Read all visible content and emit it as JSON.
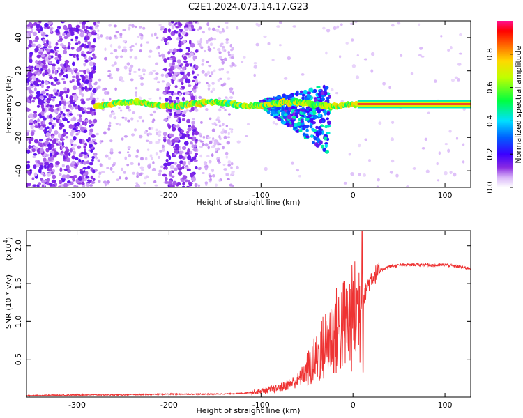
{
  "title": "C2E1.2024.073.14.17.G23",
  "chart_data": [
    {
      "type": "heatmap",
      "name": "spectrogram",
      "xlabel": "Height of straight line (km)",
      "ylabel": "Frequency (Hz)",
      "xlim": [
        -355,
        128
      ],
      "ylim": [
        -50,
        50
      ],
      "xticks": [
        -300,
        -200,
        -100,
        0,
        100
      ],
      "yticks": [
        -40,
        -20,
        0,
        20,
        40
      ],
      "colorbar": {
        "label": "Normalized spectral amplitude",
        "range": [
          0,
          1
        ],
        "ticks": [
          "0.0",
          "0.2",
          "0.4",
          "0.6",
          "0.8"
        ],
        "tick_values": [
          0.0,
          0.2,
          0.4,
          0.6,
          0.8
        ]
      },
      "features": {
        "steady_tone": {
          "x_range": [
            5,
            128
          ],
          "frequency": 0,
          "amplitude": 1.0
        },
        "noisy_tone": {
          "x_range": [
            -280,
            5
          ],
          "frequency": 0,
          "amplitude": 0.45
        },
        "scatter_region_left": {
          "x_range": [
            -355,
            -280
          ],
          "amplitude": 0.12
        },
        "scatter_band": {
          "x_range": [
            -205,
            -170
          ],
          "amplitude": 0.12
        },
        "multipath_fan": {
          "x_range": [
            -100,
            -25
          ],
          "frequency_range": [
            -30,
            12
          ]
        }
      }
    },
    {
      "type": "line",
      "name": "snr",
      "xlabel": "Height of straight line (km)",
      "ylabel": "SNR (10 * v/v)",
      "yscale_label": "(x10",
      "yscale_exponent": "4",
      "xlim": [
        -355,
        128
      ],
      "ylim": [
        0,
        2.2
      ],
      "xticks": [
        -300,
        -200,
        -100,
        0,
        100
      ],
      "yticks": [
        0.5,
        1.0,
        1.5,
        2.0
      ],
      "series_color": "#ee3333",
      "series": [
        {
          "x": [
            -355,
            -300,
            -250,
            -200,
            -150,
            -120,
            -100,
            -80,
            -60,
            -50,
            -40,
            -30,
            -20,
            -10,
            -5,
            0,
            5,
            10,
            15,
            20,
            30,
            40,
            60,
            80,
            90,
            100,
            110,
            128
          ],
          "y": [
            0.02,
            0.03,
            0.03,
            0.04,
            0.04,
            0.05,
            0.08,
            0.12,
            0.22,
            0.35,
            0.5,
            0.7,
            0.85,
            0.95,
            1.0,
            1.05,
            1.15,
            1.25,
            1.45,
            1.58,
            1.68,
            1.73,
            1.75,
            1.75,
            1.74,
            1.75,
            1.73,
            1.7
          ]
        }
      ]
    }
  ]
}
